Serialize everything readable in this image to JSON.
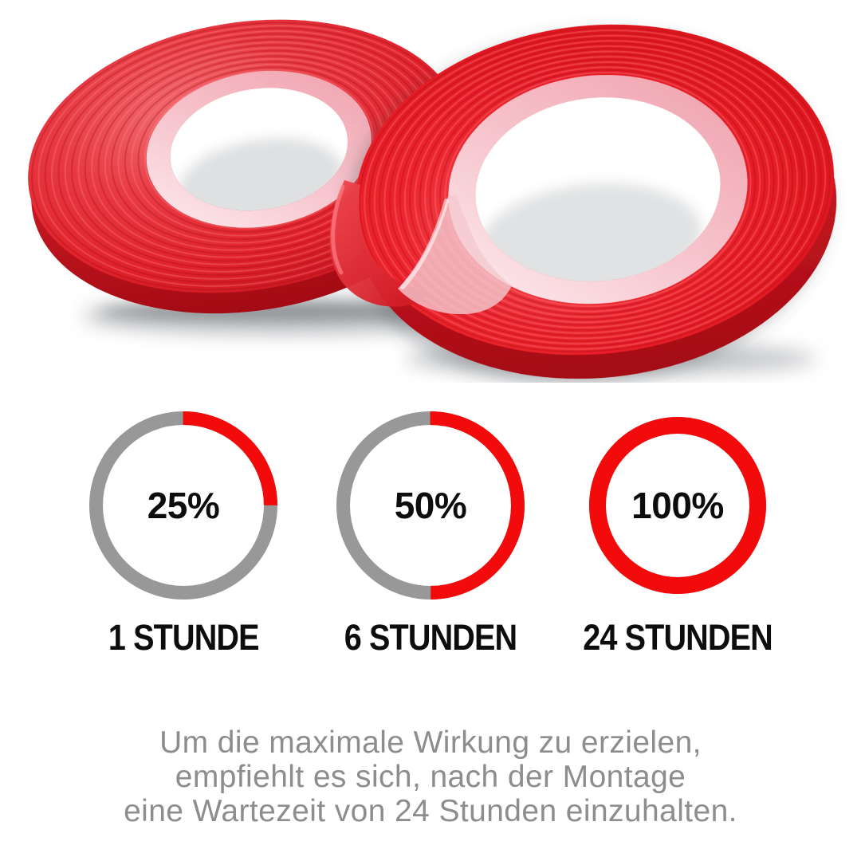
{
  "hero": {
    "image_name": "red-double-sided-tape-rolls"
  },
  "chart_data": {
    "type": "donut",
    "title": "",
    "legend_position": "none",
    "start_angle_deg": -90,
    "direction": "clockwise",
    "colors": {
      "progress": "#f30b0b",
      "track": "#989898",
      "label": "#0d0d0d"
    },
    "items": [
      {
        "percent": 25,
        "percent_label": "25%",
        "caption": "1 STUNDE",
        "diameter": 236,
        "ring_width": 17
      },
      {
        "percent": 50,
        "percent_label": "50%",
        "caption": "6 STUNDEN",
        "diameter": 236,
        "ring_width": 17
      },
      {
        "percent": 100,
        "percent_label": "100%",
        "caption": "24 STUNDEN",
        "diameter": 222,
        "ring_width": 21
      }
    ]
  },
  "footer": {
    "color": "#8d8d8d",
    "lines": [
      "Um die maximale Wirkung zu erzielen,",
      "empfiehlt es sich, nach der Montage",
      "eine Wartezeit von 24 Stunden einzuhalten."
    ]
  }
}
